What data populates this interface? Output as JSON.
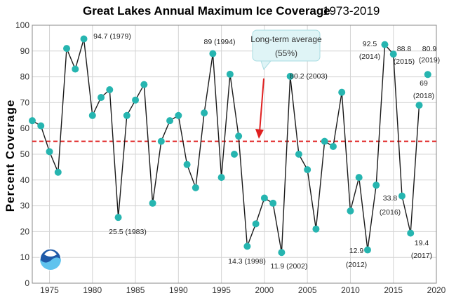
{
  "chart_data": {
    "type": "line",
    "title": "Great Lakes Annual Maximum Ice Coverage",
    "subtitle": "1973-2019",
    "xlabel": "",
    "ylabel": "Percent Coverage",
    "xlim": [
      1973,
      2020
    ],
    "ylim": [
      0,
      100
    ],
    "xticks": [
      1975,
      1980,
      1985,
      1990,
      1995,
      2000,
      2005,
      2010,
      2015,
      2020
    ],
    "yticks": [
      0,
      10,
      20,
      30,
      40,
      50,
      60,
      70,
      80,
      90,
      100
    ],
    "grid": true,
    "line_color": "#1a1a1a",
    "marker_color": "#26b5b0",
    "average": {
      "value": 55,
      "color": "#e02020",
      "label_line1": "Long-term average",
      "label_line2": "(55%)"
    },
    "series": [
      {
        "x": [
          1973,
          1974,
          1975,
          1976,
          1977,
          1978,
          1979,
          1980,
          1981,
          1982,
          1983,
          1984,
          1985,
          1986,
          1987,
          1988,
          1989,
          1990,
          1991,
          1992,
          1993,
          1994,
          1995,
          1996,
          1997,
          1998,
          1999,
          2000,
          2001,
          2002,
          2003,
          2004,
          2005,
          2006,
          2007,
          2008,
          2009,
          2010,
          2011,
          2012,
          2013,
          2014,
          2015,
          2016,
          2017,
          2018
        ],
        "y": [
          63,
          61,
          51,
          43,
          91,
          83,
          94.7,
          65,
          72,
          75,
          25.5,
          65,
          71,
          77,
          31,
          55,
          63,
          65,
          46,
          37,
          66,
          89,
          41,
          81,
          57,
          14.3,
          23,
          33,
          31,
          11.9,
          80.2,
          50,
          44,
          21,
          55,
          53,
          74,
          28,
          41,
          12.9,
          38,
          92.5,
          88.8,
          33.8,
          19.4,
          69
        ]
      }
    ],
    "isolated_points": [
      {
        "x": 1996.5,
        "y": 50
      },
      {
        "x": 2019,
        "y": 80.9
      }
    ],
    "annotations": [
      {
        "label": "94.7 (1979)"
      },
      {
        "label": "25.5 (1983)"
      },
      {
        "label": "89 (1994)"
      },
      {
        "label": "14.3 (1998)"
      },
      {
        "label": "11.9 (2002)"
      },
      {
        "label": "80.2 (2003)"
      },
      {
        "label": "12.9"
      },
      {
        "label": "(2012)"
      },
      {
        "label": "92.5"
      },
      {
        "label": "(2014)"
      },
      {
        "label": "88.8"
      },
      {
        "label": "(2015)"
      },
      {
        "label": "33.8"
      },
      {
        "label": "(2016)"
      },
      {
        "label": "19.4"
      },
      {
        "label": "(2017)"
      },
      {
        "label": "69"
      },
      {
        "label": "(2018)"
      },
      {
        "label": "80.9"
      },
      {
        "label": "(2019)"
      }
    ]
  }
}
